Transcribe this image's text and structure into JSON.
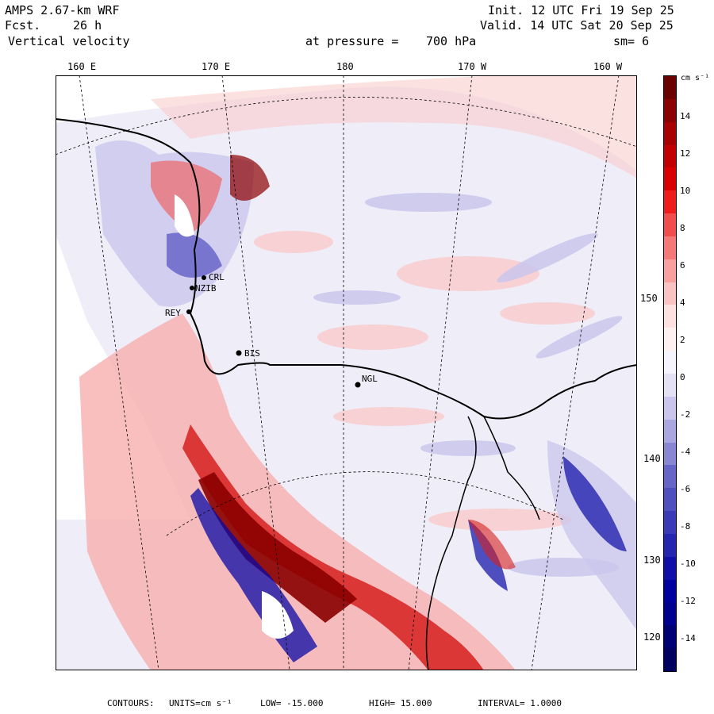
{
  "header": {
    "model": "AMPS 2.67-km WRF",
    "fcst_label": "Fcst.",
    "fcst_value": "26 h",
    "field": "Vertical velocity",
    "init": "Init. 12 UTC Fri 19 Sep 25",
    "valid": "Valid. 14 UTC Sat 20 Sep 25",
    "pressure_label": "at pressure =",
    "pressure_value": "700 hPa",
    "smoothing": "sm= 6"
  },
  "top_longitudes": [
    "160 E",
    "170 E",
    "180",
    "170 W",
    "160 W"
  ],
  "right_longitudes": [
    "150 W",
    "140 W",
    "130 W",
    "120 W"
  ],
  "stations": [
    {
      "id": "bis",
      "label": "BIS"
    },
    {
      "id": "ngl",
      "label": "NGL"
    },
    {
      "id": "crl",
      "label": "CRL"
    },
    {
      "id": "nzib",
      "label": "NZIB"
    },
    {
      "id": "rey",
      "label": "REY"
    }
  ],
  "colorbar": {
    "unit_label": "cm s⁻¹",
    "tick_labels": [
      "14",
      "12",
      "10",
      "8",
      "6",
      "4",
      "2",
      "0",
      "-2",
      "-4",
      "-6",
      "-8",
      "-10",
      "-12",
      "-14"
    ],
    "colors": [
      "#6b0000",
      "#8b0000",
      "#a80000",
      "#c30000",
      "#d90000",
      "#ee1c1c",
      "#f24d4d",
      "#f57878",
      "#f8a0a0",
      "#fac3c3",
      "#fde0e0",
      "#fdf0f0",
      "#f5f3fb",
      "#e4e1f5",
      "#c9c5ec",
      "#aaa7e0",
      "#8a87d2",
      "#6666c8",
      "#4f4fc0",
      "#3a3ab8",
      "#2525b0",
      "#1010a8",
      "#0000a0",
      "#000090",
      "#000075",
      "#000060"
    ]
  },
  "footer": {
    "contours": "CONTOURS:",
    "units": "UNITS=cm s⁻¹",
    "low": "LOW= -15.000",
    "high": "HIGH= 15.000",
    "interval": "INTERVAL= 1.0000"
  },
  "colors": {
    "positive_light": "#f9c9c9",
    "positive_mid": "#ee6666",
    "positive_strong": "#a50000",
    "negative_light": "#e2e0f5",
    "negative_mid": "#8a87d2",
    "negative_strong": "#0a0aa5",
    "neutral": "#efedf8"
  }
}
